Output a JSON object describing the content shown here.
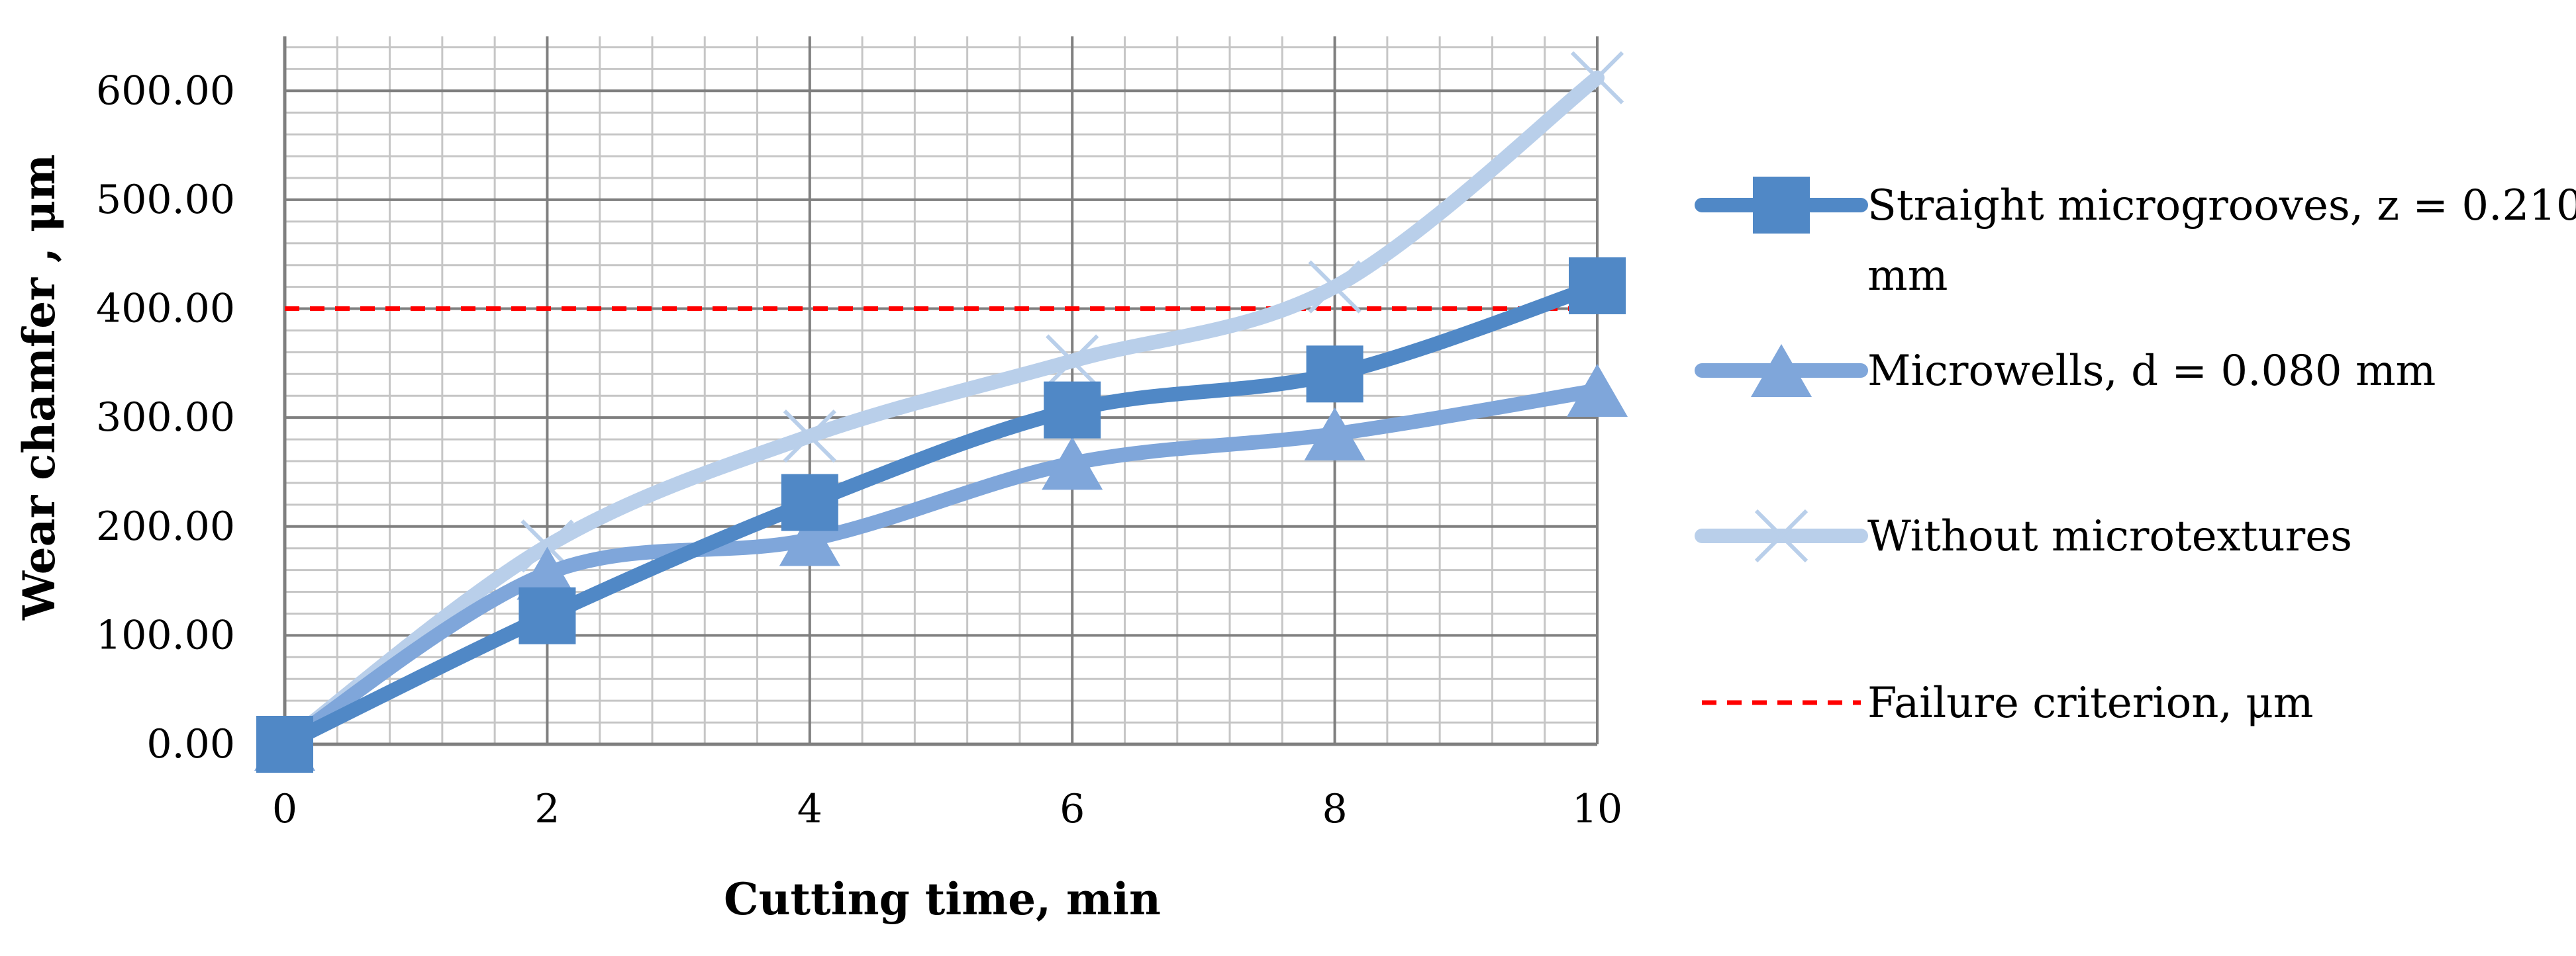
{
  "chart_data": {
    "type": "line",
    "xlabel": "Cutting time, min",
    "ylabel": "Wear chamfer ,  μm",
    "xlim": [
      0,
      10
    ],
    "ylim": [
      0,
      650
    ],
    "x_ticks": [
      "0",
      "2",
      "4",
      "6",
      "8",
      "10"
    ],
    "y_ticks": [
      "0.00",
      "100.00",
      "200.00",
      "300.00",
      "400.00",
      "500.00",
      "600.00"
    ],
    "grid": true,
    "legend_position": "right",
    "series": [
      {
        "name": "Straight microgrooves, z = 0.210 mm",
        "legend_lines": [
          "Straight microgrooves, z = 0.210",
          "mm"
        ],
        "marker": "square",
        "color": "#5088C6",
        "line_style": "solid-smooth",
        "x": [
          0,
          2,
          4,
          6,
          8,
          10
        ],
        "y": [
          0,
          118,
          222,
          307,
          340,
          421
        ]
      },
      {
        "name": "Microwells, d = 0.080 mm",
        "legend_lines": [
          "Microwells, d = 0.080 mm"
        ],
        "marker": "triangle",
        "color": "#7FA6DA",
        "line_style": "solid-smooth",
        "x": [
          0,
          2,
          4,
          6,
          8,
          10
        ],
        "y": [
          0,
          157,
          188,
          258,
          285,
          325
        ]
      },
      {
        "name": "Without microtextures",
        "legend_lines": [
          "Without microtextures"
        ],
        "marker": "x",
        "color": "#B9CFEA",
        "line_style": "solid-smooth",
        "x": [
          0,
          2,
          4,
          6,
          8,
          10
        ],
        "y": [
          0,
          182,
          283,
          352,
          420,
          612
        ]
      },
      {
        "name": "Failure criterion, μm",
        "legend_lines": [
          "Failure criterion, μm"
        ],
        "marker": "none",
        "color": "#FF0000",
        "line_style": "dashed",
        "x": [
          0,
          10
        ],
        "y": [
          400,
          400
        ]
      }
    ]
  }
}
